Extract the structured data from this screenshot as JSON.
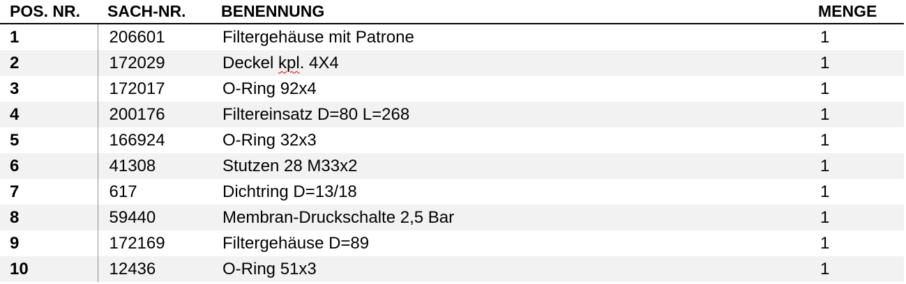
{
  "table": {
    "headers": {
      "pos": "POS. NR.",
      "sach": "SACH-NR.",
      "benennung": "BENENNUNG",
      "menge": "MENGE"
    },
    "rows": [
      {
        "pos": "1",
        "sach": "206601",
        "benennung_pre": "Filtergehäuse mit Patrone",
        "benennung_mark": "",
        "benennung_post": "",
        "menge": "1"
      },
      {
        "pos": "2",
        "sach": "172029",
        "benennung_pre": "Deckel ",
        "benennung_mark": "kpl",
        "benennung_post": ". 4X4",
        "menge": "1"
      },
      {
        "pos": "3",
        "sach": "172017",
        "benennung_pre": "O-Ring 92x4",
        "benennung_mark": "",
        "benennung_post": "",
        "menge": "1"
      },
      {
        "pos": "4",
        "sach": "200176",
        "benennung_pre": "Filtereinsatz D=80 L=268",
        "benennung_mark": "",
        "benennung_post": "",
        "menge": "1"
      },
      {
        "pos": "5",
        "sach": "166924",
        "benennung_pre": "O-Ring 32x3",
        "benennung_mark": "",
        "benennung_post": "",
        "menge": "1"
      },
      {
        "pos": "6",
        "sach": "41308",
        "benennung_pre": "Stutzen 28 M33x2",
        "benennung_mark": "",
        "benennung_post": "",
        "menge": "1"
      },
      {
        "pos": "7",
        "sach": "617",
        "benennung_pre": "Dichtring D=13/18",
        "benennung_mark": "",
        "benennung_post": "",
        "menge": "1"
      },
      {
        "pos": "8",
        "sach": "59440",
        "benennung_pre": "Membran-Druckschalte 2,5 Bar",
        "benennung_mark": "",
        "benennung_post": "",
        "menge": "1"
      },
      {
        "pos": "9",
        "sach": "172169",
        "benennung_pre": "Filtergehäuse D=89",
        "benennung_mark": "",
        "benennung_post": "",
        "menge": "1"
      },
      {
        "pos": "10",
        "sach": "12436",
        "benennung_pre": "O-Ring 51x3",
        "benennung_mark": "",
        "benennung_post": "",
        "menge": "1"
      }
    ]
  }
}
